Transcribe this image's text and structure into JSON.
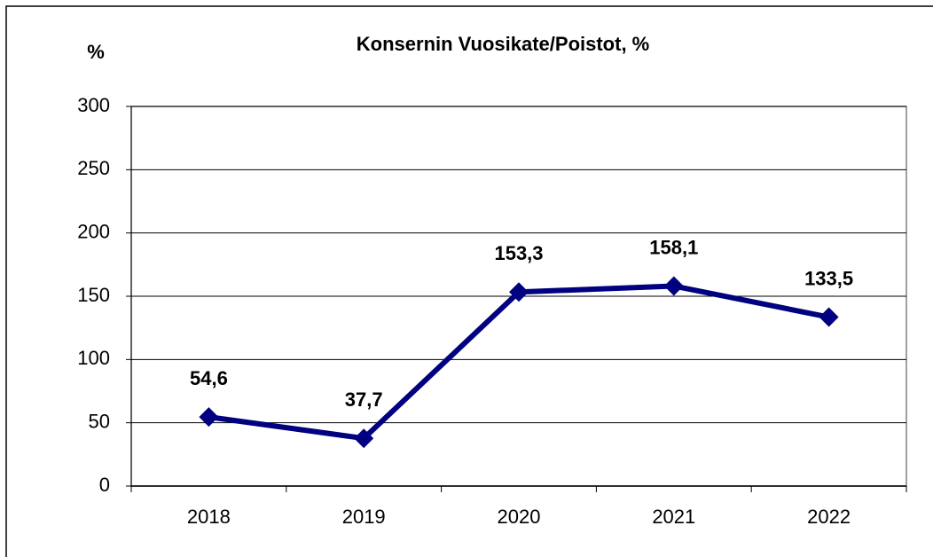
{
  "chart_data": {
    "type": "line",
    "title": "Konsernin Vuosikate/Poistot, %",
    "y_label": "%",
    "categories": [
      "2018",
      "2019",
      "2020",
      "2021",
      "2022"
    ],
    "series": [
      {
        "name": "Vuosikate/Poistot",
        "color": "#000080",
        "values": [
          54.6,
          37.7,
          153.3,
          158.1,
          133.5
        ],
        "value_labels": [
          "54,6",
          "37,7",
          "153,3",
          "158,1",
          "133,5"
        ]
      }
    ],
    "ylim": [
      0,
      300
    ],
    "yticks": [
      0,
      50,
      100,
      150,
      200,
      250,
      300
    ],
    "grid": true,
    "legend": false
  }
}
